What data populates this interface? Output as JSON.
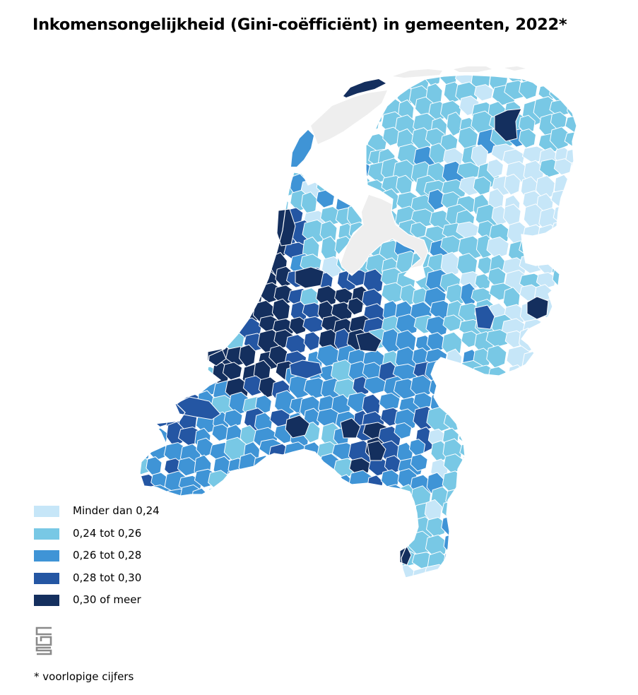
{
  "title": "Inkomensongelijkheid (Gini-coëfficiënt) in gemeenten, 2022*",
  "legend": [
    {
      "label": "Minder dan 0,24",
      "color": "#c6e6f8"
    },
    {
      "label": "0,24 tot 0,26",
      "color": "#78c8e5"
    },
    {
      "label": "0,26 tot 0,28",
      "color": "#3f94d6"
    },
    {
      "label": "0,28 tot 0,30",
      "color": "#2456a3"
    },
    {
      "label": "0,30 of meer",
      "color": "#142f5e"
    }
  ],
  "water_color": "#eeeeee",
  "border_color": "#ffffff",
  "logo_icon": "cbs-logo-icon",
  "footnote": "* voorlopige cijfers"
}
